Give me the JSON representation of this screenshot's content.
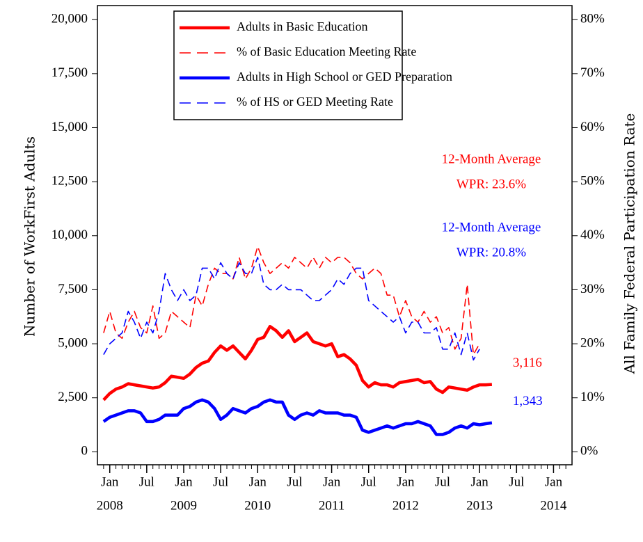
{
  "chart_data": {
    "type": "line",
    "y_label": "Number of WorkFirst Adults",
    "y2_label": "All Family Federal Participation Rate",
    "x": [
      "2007-12",
      "2008-01",
      "2008-02",
      "2008-03",
      "2008-04",
      "2008-05",
      "2008-06",
      "2008-07",
      "2008-08",
      "2008-09",
      "2008-10",
      "2008-11",
      "2008-12",
      "2009-01",
      "2009-02",
      "2009-03",
      "2009-04",
      "2009-05",
      "2009-06",
      "2009-07",
      "2009-08",
      "2009-09",
      "2009-10",
      "2009-11",
      "2009-12",
      "2010-01",
      "2010-02",
      "2010-03",
      "2010-04",
      "2010-05",
      "2010-06",
      "2010-07",
      "2010-08",
      "2010-09",
      "2010-10",
      "2010-11",
      "2010-12",
      "2011-01",
      "2011-02",
      "2011-03",
      "2011-04",
      "2011-05",
      "2011-06",
      "2011-07",
      "2011-08",
      "2011-09",
      "2011-10",
      "2011-11",
      "2011-12",
      "2012-01",
      "2012-02",
      "2012-03",
      "2012-04",
      "2012-05",
      "2012-06",
      "2012-07",
      "2012-08",
      "2012-09",
      "2012-10",
      "2012-11",
      "2012-12",
      "2013-01",
      "2013-02",
      "2013-03"
    ],
    "xlim": [
      "2007-11",
      "2014-04"
    ],
    "xticks": [
      {
        "value": "2008-01",
        "label": "Jan"
      },
      {
        "value": "2008-07",
        "label": "Jul"
      },
      {
        "value": "2009-01",
        "label": "Jan"
      },
      {
        "value": "2009-07",
        "label": "Jul"
      },
      {
        "value": "2010-01",
        "label": "Jan"
      },
      {
        "value": "2010-07",
        "label": "Jul"
      },
      {
        "value": "2011-01",
        "label": "Jan"
      },
      {
        "value": "2011-07",
        "label": "Jul"
      },
      {
        "value": "2012-01",
        "label": "Jan"
      },
      {
        "value": "2012-07",
        "label": "Jul"
      },
      {
        "value": "2013-01",
        "label": "Jan"
      },
      {
        "value": "2013-07",
        "label": "Jul"
      },
      {
        "value": "2014-01",
        "label": "Jan"
      }
    ],
    "xtick_years": [
      {
        "value": "2008-01",
        "label": "2008"
      },
      {
        "value": "2009-01",
        "label": "2009"
      },
      {
        "value": "2010-01",
        "label": "2010"
      },
      {
        "value": "2011-01",
        "label": "2011"
      },
      {
        "value": "2012-01",
        "label": "2012"
      },
      {
        "value": "2013-01",
        "label": "2013"
      },
      {
        "value": "2014-01",
        "label": "2014"
      }
    ],
    "ylim": [
      -600,
      20650
    ],
    "yticks": [
      0,
      {
        "value": 2500,
        "label": "2,500"
      },
      {
        "value": 5000,
        "label": "5,000"
      },
      {
        "value": 7500,
        "label": "7,500"
      },
      {
        "value": 10000,
        "label": "10,000"
      },
      {
        "value": 12500,
        "label": "12,500"
      },
      {
        "value": 15000,
        "label": "15,000"
      },
      {
        "value": 17500,
        "label": "17,500"
      },
      {
        "value": 20000,
        "label": "20,000"
      }
    ],
    "y2lim": [
      -2.4,
      82.6
    ],
    "y2ticks": [
      {
        "value": 0,
        "label": "0%"
      },
      {
        "value": 10,
        "label": "10%"
      },
      {
        "value": 20,
        "label": "20%"
      },
      {
        "value": 30,
        "label": "30%"
      },
      {
        "value": 40,
        "label": "40%"
      },
      {
        "value": 50,
        "label": "50%"
      },
      {
        "value": 60,
        "label": "60%"
      },
      {
        "value": 70,
        "label": "70%"
      },
      {
        "value": 80,
        "label": "80%"
      }
    ],
    "grid": false,
    "legend": "top",
    "series": [
      {
        "name": "Adults in Basic Education",
        "color": "#ff0000",
        "line_style": "solid",
        "end_label": "3,116",
        "values": [
          2400,
          2700,
          2900,
          3000,
          3150,
          3100,
          3050,
          3000,
          2950,
          3000,
          3200,
          3500,
          3450,
          3400,
          3600,
          3900,
          4100,
          4200,
          4600,
          4900,
          4700,
          4900,
          4600,
          4300,
          4700,
          5200,
          5300,
          5800,
          5600,
          5300,
          5600,
          5100,
          5300,
          5500,
          5100,
          5000,
          4900,
          5000,
          4400,
          4500,
          4300,
          4000,
          3300,
          3000,
          3200,
          3100,
          3100,
          3000,
          3200,
          3250,
          3300,
          3350,
          3200,
          3250,
          2900,
          2750,
          3000,
          2950,
          2900,
          2850,
          3000,
          3100,
          3100,
          3116
        ]
      },
      {
        "name": "% of Basic Education Meeting Rate",
        "color": "#ff0000",
        "line_style": "dashed",
        "axis": "y2",
        "values": [
          22,
          26,
          22,
          21,
          24,
          26,
          23,
          22,
          27,
          21,
          22,
          26,
          25,
          24,
          23,
          29,
          27,
          31,
          34,
          33,
          33,
          32,
          36,
          32,
          34,
          38,
          35,
          33,
          34,
          35,
          34,
          36,
          35,
          34,
          36,
          34,
          36,
          35,
          36,
          36,
          35,
          33,
          32,
          33,
          34,
          33,
          29,
          29,
          25,
          28,
          25,
          24,
          26,
          24,
          25,
          22,
          23,
          19,
          21,
          31,
          18,
          20,
          null,
          null
        ]
      },
      {
        "name": "Adults in High School or GED Preparation",
        "color": "#0000ff",
        "line_style": "solid",
        "end_label": "1,343",
        "values": [
          1400,
          1600,
          1700,
          1800,
          1900,
          1900,
          1800,
          1400,
          1400,
          1500,
          1700,
          1700,
          1700,
          2000,
          2100,
          2300,
          2400,
          2300,
          2000,
          1500,
          1700,
          2000,
          1900,
          1800,
          2000,
          2100,
          2300,
          2400,
          2300,
          2300,
          1700,
          1500,
          1700,
          1800,
          1700,
          1900,
          1800,
          1800,
          1800,
          1700,
          1700,
          1600,
          1000,
          900,
          1000,
          1100,
          1200,
          1100,
          1200,
          1300,
          1300,
          1400,
          1300,
          1200,
          800,
          800,
          900,
          1100,
          1200,
          1100,
          1300,
          1250,
          1300,
          1343
        ]
      },
      {
        "name": "% of HS or GED Meeting Rate",
        "color": "#0000ff",
        "line_style": "dashed",
        "axis": "y2",
        "values": [
          18,
          20,
          21,
          22,
          26,
          24,
          21,
          24,
          22,
          26,
          33,
          30,
          28,
          30,
          28,
          29,
          34,
          34,
          32,
          35,
          33,
          32,
          35,
          33,
          33,
          36,
          31,
          30,
          30,
          31,
          30,
          30,
          30,
          29,
          28,
          28,
          29,
          30,
          32,
          31,
          33,
          34,
          34,
          28,
          27,
          26,
          25,
          24,
          25,
          22,
          24,
          24,
          22,
          22,
          23,
          19,
          19,
          22,
          18,
          22,
          17,
          19,
          null,
          null
        ]
      }
    ],
    "annotations": [
      {
        "lines": [
          "12-Month Average",
          "WPR: 23.6%"
        ],
        "color": "#ff0000"
      },
      {
        "lines": [
          "12-Month Average",
          "WPR: 20.8%"
        ],
        "color": "#0000ff"
      }
    ]
  }
}
